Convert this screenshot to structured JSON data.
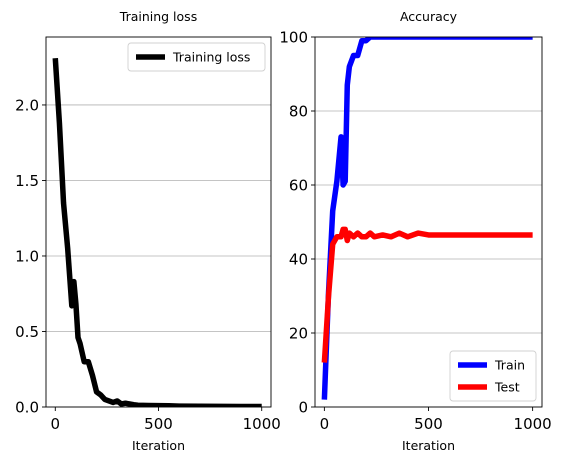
{
  "chart_data": [
    {
      "type": "line",
      "title": "Training loss",
      "xlabel": "Iteration",
      "ylabel": "",
      "xlim": [
        -45,
        1045
      ],
      "ylim": [
        0,
        2.45
      ],
      "xticks": [
        0,
        500,
        1000
      ],
      "xtick_labels": [
        "0",
        "500",
        "1000"
      ],
      "yticks": [
        0.0,
        0.5,
        1.0,
        1.5,
        2.0
      ],
      "ytick_labels": [
        "0.0",
        "0.5",
        "1.0",
        "1.5",
        "2.0"
      ],
      "grid": "y",
      "legend_position": "top-right",
      "series": [
        {
          "name": "Training loss",
          "color": "#000000",
          "x": [
            0,
            20,
            40,
            60,
            80,
            90,
            100,
            110,
            120,
            140,
            160,
            180,
            200,
            220,
            240,
            260,
            280,
            300,
            320,
            340,
            360,
            380,
            400,
            450,
            500,
            550,
            600,
            700,
            800,
            900,
            1000
          ],
          "y": [
            2.31,
            1.88,
            1.35,
            1.05,
            0.67,
            0.83,
            0.68,
            0.46,
            0.42,
            0.3,
            0.3,
            0.21,
            0.1,
            0.08,
            0.05,
            0.04,
            0.03,
            0.04,
            0.02,
            0.025,
            0.02,
            0.015,
            0.012,
            0.01,
            0.009,
            0.008,
            0.006,
            0.005,
            0.004,
            0.003,
            0.003
          ]
        }
      ]
    },
    {
      "type": "line",
      "title": "Accuracy",
      "xlabel": "Iteration",
      "ylabel": "",
      "xlim": [
        -45,
        1045
      ],
      "ylim": [
        0,
        100
      ],
      "xticks": [
        0,
        500,
        1000
      ],
      "xtick_labels": [
        "0",
        "500",
        "1000"
      ],
      "yticks": [
        0,
        20,
        40,
        60,
        80,
        100
      ],
      "ytick_labels": [
        "0",
        "20",
        "40",
        "60",
        "80",
        "100"
      ],
      "grid": "y",
      "legend_position": "bottom-right",
      "series": [
        {
          "name": "Train",
          "color": "#0000ff",
          "x": [
            0,
            20,
            40,
            60,
            80,
            90,
            100,
            110,
            120,
            140,
            160,
            180,
            200,
            220,
            240,
            300,
            400,
            500,
            600,
            700,
            800,
            900,
            1000
          ],
          "y": [
            2,
            31,
            53,
            61,
            73,
            60,
            61,
            87,
            92,
            95,
            95,
            99,
            99,
            100,
            100,
            100,
            100,
            100,
            100,
            100,
            100,
            100,
            100
          ]
        },
        {
          "name": "Test",
          "color": "#ff0000",
          "x": [
            0,
            20,
            40,
            60,
            80,
            90,
            100,
            110,
            120,
            140,
            160,
            180,
            200,
            220,
            240,
            280,
            320,
            360,
            400,
            450,
            500,
            600,
            700,
            800,
            900,
            1000
          ],
          "y": [
            12,
            30,
            44,
            46,
            46,
            48,
            48,
            45,
            47,
            46,
            47,
            46,
            46,
            47,
            46,
            46.5,
            46,
            47,
            46,
            47,
            46.5,
            46.5,
            46.5,
            46.5,
            46.5,
            46.5
          ]
        }
      ]
    }
  ]
}
